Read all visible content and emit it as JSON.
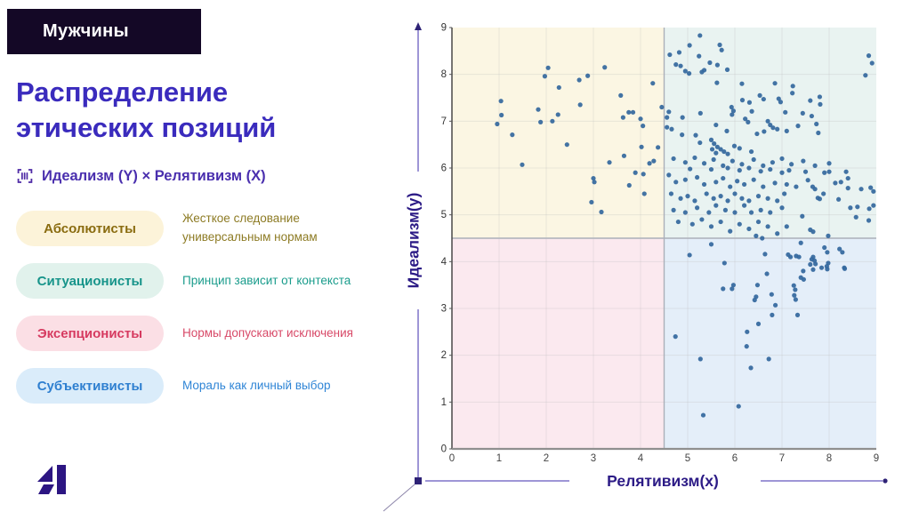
{
  "badge": {
    "label": "Мужчины"
  },
  "title": {
    "line1": "Распределение",
    "line2": "этических позиций"
  },
  "subtitle": {
    "icon": "barcode-chart-icon",
    "text": "Идеализм (Y) × Релятивизм (X)"
  },
  "legend": {
    "items": [
      {
        "label": "Абсолютисты",
        "description": "Жесткое следование универсальным нормам",
        "pill_bg": "#fcf3d9",
        "pill_text": "#8a6c10",
        "desc_color": "#8d7b24"
      },
      {
        "label": "Ситуационисты",
        "description": "Принцип зависит от контекста",
        "pill_bg": "#e1f2ec",
        "pill_text": "#17948a",
        "desc_color": "#1a9c8c"
      },
      {
        "label": "Эксепционисты",
        "description": "Нормы допускают исключения",
        "pill_bg": "#fbdfe5",
        "pill_text": "#d63a60",
        "desc_color": "#d84a68"
      },
      {
        "label": "Субъективисты",
        "description": "Мораль как личный выбор",
        "pill_bg": "#daecfa",
        "pill_text": "#2e7fd0",
        "desc_color": "#2f85d6"
      }
    ]
  },
  "colors": {
    "accent": "#3a2bbd",
    "badge_bg": "#140826",
    "axis_deco": "#7e74c9",
    "axis_deco_dark": "#2e2276",
    "logo": "#2c1582"
  },
  "chart_data": {
    "type": "scatter",
    "title": "",
    "xlabel": "Релятивизм(x)",
    "ylabel": "Идеализм(y)",
    "xlim": [
      0,
      9
    ],
    "ylim": [
      0,
      9
    ],
    "xticks": [
      0,
      1,
      2,
      3,
      4,
      5,
      6,
      7,
      8,
      9
    ],
    "yticks": [
      0,
      1,
      2,
      3,
      4,
      5,
      6,
      7,
      8,
      9
    ],
    "grid": true,
    "quadrant_split": {
      "x": 4.5,
      "y": 4.5
    },
    "quadrant_colors": {
      "top_left": "#fbf6e3",
      "top_right": "#e9f3f1",
      "bottom_left": "#fbe9ef",
      "bottom_right": "#e4eef9"
    },
    "divider_color": "#abafb9",
    "point_color": "#35689e",
    "points": [
      [
        2.04,
        8.14
      ],
      [
        1.97,
        7.96
      ],
      [
        2.88,
        7.97
      ],
      [
        2.7,
        7.88
      ],
      [
        3.24,
        8.15
      ],
      [
        2.27,
        7.72
      ],
      [
        3.58,
        7.55
      ],
      [
        1.04,
        7.43
      ],
      [
        4.26,
        7.81
      ],
      [
        4.45,
        7.3
      ],
      [
        2.72,
        7.35
      ],
      [
        1.05,
        7.13
      ],
      [
        1.83,
        7.25
      ],
      [
        2.25,
        7.14
      ],
      [
        0.96,
        6.94
      ],
      [
        1.88,
        6.98
      ],
      [
        2.13,
        7.0
      ],
      [
        3.63,
        7.08
      ],
      [
        3.75,
        7.19
      ],
      [
        3.84,
        7.19
      ],
      [
        1.28,
        6.71
      ],
      [
        4.0,
        7.05
      ],
      [
        4.05,
        6.9
      ],
      [
        2.44,
        6.5
      ],
      [
        4.02,
        6.45
      ],
      [
        4.37,
        6.44
      ],
      [
        3.65,
        6.26
      ],
      [
        3.34,
        6.12
      ],
      [
        4.19,
        6.1
      ],
      [
        4.28,
        6.15
      ],
      [
        1.49,
        6.07
      ],
      [
        3.89,
        5.9
      ],
      [
        4.06,
        5.87
      ],
      [
        3.0,
        5.78
      ],
      [
        3.02,
        5.7
      ],
      [
        3.76,
        5.63
      ],
      [
        4.08,
        5.45
      ],
      [
        2.96,
        5.27
      ],
      [
        3.17,
        5.06
      ],
      [
        5.26,
        8.83
      ],
      [
        5.68,
        8.63
      ],
      [
        5.72,
        8.52
      ],
      [
        5.04,
        8.62
      ],
      [
        4.82,
        8.47
      ],
      [
        4.62,
        8.42
      ],
      [
        5.24,
        8.39
      ],
      [
        5.47,
        8.25
      ],
      [
        5.63,
        8.2
      ],
      [
        4.75,
        8.21
      ],
      [
        4.85,
        8.18
      ],
      [
        4.95,
        8.07
      ],
      [
        5.03,
        8.02
      ],
      [
        5.3,
        8.05
      ],
      [
        5.35,
        8.09
      ],
      [
        5.84,
        8.1
      ],
      [
        8.84,
        8.4
      ],
      [
        8.91,
        8.24
      ],
      [
        8.77,
        7.98
      ],
      [
        5.62,
        7.82
      ],
      [
        6.15,
        7.8
      ],
      [
        6.85,
        7.81
      ],
      [
        7.23,
        7.75
      ],
      [
        7.22,
        7.6
      ],
      [
        6.53,
        7.55
      ],
      [
        6.61,
        7.47
      ],
      [
        6.16,
        7.45
      ],
      [
        6.93,
        7.48
      ],
      [
        6.97,
        7.41
      ],
      [
        7.6,
        7.44
      ],
      [
        7.8,
        7.52
      ],
      [
        7.81,
        7.36
      ],
      [
        5.93,
        7.3
      ],
      [
        5.97,
        7.22
      ],
      [
        5.94,
        7.14
      ],
      [
        6.31,
        7.4
      ],
      [
        6.36,
        7.21
      ],
      [
        4.6,
        7.2
      ],
      [
        4.56,
        7.08
      ],
      [
        4.89,
        7.08
      ],
      [
        5.27,
        7.17
      ],
      [
        7.07,
        7.19
      ],
      [
        7.44,
        7.17
      ],
      [
        7.63,
        7.11
      ],
      [
        6.22,
        7.05
      ],
      [
        6.28,
        6.98
      ],
      [
        6.7,
        7.0
      ],
      [
        6.75,
        6.92
      ],
      [
        6.81,
        6.86
      ],
      [
        5.6,
        6.92
      ],
      [
        5.83,
        6.79
      ],
      [
        4.56,
        6.87
      ],
      [
        4.66,
        6.83
      ],
      [
        4.88,
        6.71
      ],
      [
        6.62,
        6.78
      ],
      [
        6.9,
        6.83
      ],
      [
        7.1,
        6.79
      ],
      [
        7.34,
        6.9
      ],
      [
        7.73,
        6.94
      ],
      [
        7.77,
        6.75
      ],
      [
        5.17,
        6.7
      ],
      [
        5.26,
        6.54
      ],
      [
        6.47,
        6.73
      ],
      [
        5.5,
        6.6
      ],
      [
        5.56,
        6.52
      ],
      [
        5.63,
        6.45
      ],
      [
        5.7,
        6.4
      ],
      [
        5.77,
        6.35
      ],
      [
        5.85,
        6.3
      ],
      [
        5.6,
        6.32
      ],
      [
        5.52,
        6.4
      ],
      [
        5.99,
        6.47
      ],
      [
        6.1,
        6.42
      ],
      [
        6.35,
        6.35
      ],
      [
        4.7,
        6.2
      ],
      [
        4.95,
        6.12
      ],
      [
        5.15,
        6.22
      ],
      [
        5.35,
        6.1
      ],
      [
        5.55,
        6.18
      ],
      [
        5.75,
        6.05
      ],
      [
        5.95,
        6.15
      ],
      [
        6.15,
        6.08
      ],
      [
        6.4,
        6.18
      ],
      [
        6.6,
        6.05
      ],
      [
        6.8,
        6.12
      ],
      [
        7.0,
        6.2
      ],
      [
        7.2,
        6.08
      ],
      [
        7.45,
        6.15
      ],
      [
        7.7,
        6.05
      ],
      [
        8.0,
        6.1
      ],
      [
        5.05,
        5.98
      ],
      [
        5.5,
        5.97
      ],
      [
        5.85,
        6.0
      ],
      [
        6.1,
        5.95
      ],
      [
        6.3,
        6.0
      ],
      [
        6.55,
        5.93
      ],
      [
        6.75,
        5.97
      ],
      [
        7.0,
        5.9
      ],
      [
        7.15,
        5.95
      ],
      [
        7.5,
        5.92
      ],
      [
        7.9,
        5.9
      ],
      [
        8.0,
        5.92
      ],
      [
        8.36,
        5.92
      ],
      [
        4.6,
        5.85
      ],
      [
        4.75,
        5.7
      ],
      [
        4.95,
        5.75
      ],
      [
        5.2,
        5.8
      ],
      [
        5.35,
        5.65
      ],
      [
        5.6,
        5.7
      ],
      [
        5.75,
        5.78
      ],
      [
        5.9,
        5.6
      ],
      [
        6.05,
        5.72
      ],
      [
        6.2,
        5.65
      ],
      [
        6.4,
        5.75
      ],
      [
        6.6,
        5.6
      ],
      [
        6.85,
        5.68
      ],
      [
        7.1,
        5.65
      ],
      [
        7.3,
        5.6
      ],
      [
        7.55,
        5.74
      ],
      [
        7.65,
        5.6
      ],
      [
        7.7,
        5.55
      ],
      [
        8.13,
        5.68
      ],
      [
        8.25,
        5.7
      ],
      [
        8.4,
        5.78
      ],
      [
        8.4,
        5.57
      ],
      [
        8.68,
        5.55
      ],
      [
        8.88,
        5.58
      ],
      [
        8.94,
        5.5
      ],
      [
        4.65,
        5.45
      ],
      [
        4.85,
        5.35
      ],
      [
        5.0,
        5.4
      ],
      [
        5.15,
        5.3
      ],
      [
        5.4,
        5.45
      ],
      [
        5.55,
        5.35
      ],
      [
        5.7,
        5.4
      ],
      [
        5.85,
        5.3
      ],
      [
        6.0,
        5.45
      ],
      [
        6.15,
        5.35
      ],
      [
        6.3,
        5.3
      ],
      [
        6.5,
        5.4
      ],
      [
        6.7,
        5.35
      ],
      [
        6.9,
        5.3
      ],
      [
        7.05,
        5.45
      ],
      [
        7.76,
        5.36
      ],
      [
        7.8,
        5.34
      ],
      [
        7.88,
        5.45
      ],
      [
        8.2,
        5.33
      ],
      [
        8.6,
        5.17
      ],
      [
        8.94,
        5.2
      ],
      [
        4.7,
        5.1
      ],
      [
        4.95,
        5.05
      ],
      [
        5.2,
        5.15
      ],
      [
        5.45,
        5.05
      ],
      [
        5.6,
        5.2
      ],
      [
        5.8,
        5.1
      ],
      [
        6.0,
        5.05
      ],
      [
        6.2,
        5.2
      ],
      [
        6.35,
        5.05
      ],
      [
        6.55,
        5.1
      ],
      [
        6.75,
        5.05
      ],
      [
        7.0,
        5.15
      ],
      [
        7.43,
        4.97
      ],
      [
        8.45,
        5.15
      ],
      [
        8.85,
        5.13
      ],
      [
        4.8,
        4.85
      ],
      [
        5.1,
        4.8
      ],
      [
        5.3,
        4.9
      ],
      [
        5.5,
        4.75
      ],
      [
        5.7,
        4.85
      ],
      [
        5.9,
        4.65
      ],
      [
        6.1,
        4.8
      ],
      [
        6.3,
        4.7
      ],
      [
        6.5,
        4.85
      ],
      [
        6.7,
        4.75
      ],
      [
        6.9,
        4.6
      ],
      [
        7.1,
        4.75
      ],
      [
        7.6,
        4.68
      ],
      [
        7.66,
        4.64
      ],
      [
        7.98,
        4.55
      ],
      [
        8.57,
        4.95
      ],
      [
        8.84,
        4.88
      ],
      [
        6.45,
        4.55
      ],
      [
        6.58,
        4.5
      ],
      [
        5.04,
        4.14
      ],
      [
        5.5,
        4.37
      ],
      [
        5.78,
        3.97
      ],
      [
        5.97,
        3.5
      ],
      [
        5.94,
        3.42
      ],
      [
        5.75,
        3.42
      ],
      [
        6.64,
        4.16
      ],
      [
        6.48,
        3.5
      ],
      [
        6.45,
        3.25
      ],
      [
        6.42,
        3.18
      ],
      [
        6.68,
        3.74
      ],
      [
        6.78,
        3.3
      ],
      [
        6.86,
        3.07
      ],
      [
        7.13,
        4.15
      ],
      [
        7.18,
        4.1
      ],
      [
        7.3,
        4.12
      ],
      [
        7.36,
        4.1
      ],
      [
        7.25,
        3.49
      ],
      [
        7.28,
        3.4
      ],
      [
        7.26,
        3.28
      ],
      [
        7.29,
        3.19
      ],
      [
        7.4,
        3.66
      ],
      [
        7.46,
        3.62
      ],
      [
        7.66,
        4.1
      ],
      [
        7.69,
        4.02
      ],
      [
        7.71,
        3.95
      ],
      [
        7.66,
        3.83
      ],
      [
        7.84,
        3.87
      ],
      [
        7.96,
        3.84
      ],
      [
        7.9,
        4.3
      ],
      [
        7.96,
        4.2
      ],
      [
        8.22,
        4.27
      ],
      [
        7.98,
        3.97
      ],
      [
        8.32,
        3.87
      ],
      [
        8.28,
        4.2
      ],
      [
        7.63,
        4.05
      ],
      [
        7.6,
        3.94
      ],
      [
        7.95,
        3.9
      ],
      [
        7.45,
        3.8
      ],
      [
        8.33,
        3.85
      ],
      [
        4.74,
        2.4
      ],
      [
        5.27,
        1.92
      ],
      [
        6.26,
        2.5
      ],
      [
        6.25,
        2.19
      ],
      [
        6.34,
        1.73
      ],
      [
        6.5,
        2.67
      ],
      [
        6.72,
        1.92
      ],
      [
        6.79,
        2.86
      ],
      [
        7.33,
        2.86
      ],
      [
        6.08,
        0.91
      ],
      [
        5.33,
        0.72
      ],
      [
        7.4,
        4.4
      ]
    ]
  }
}
